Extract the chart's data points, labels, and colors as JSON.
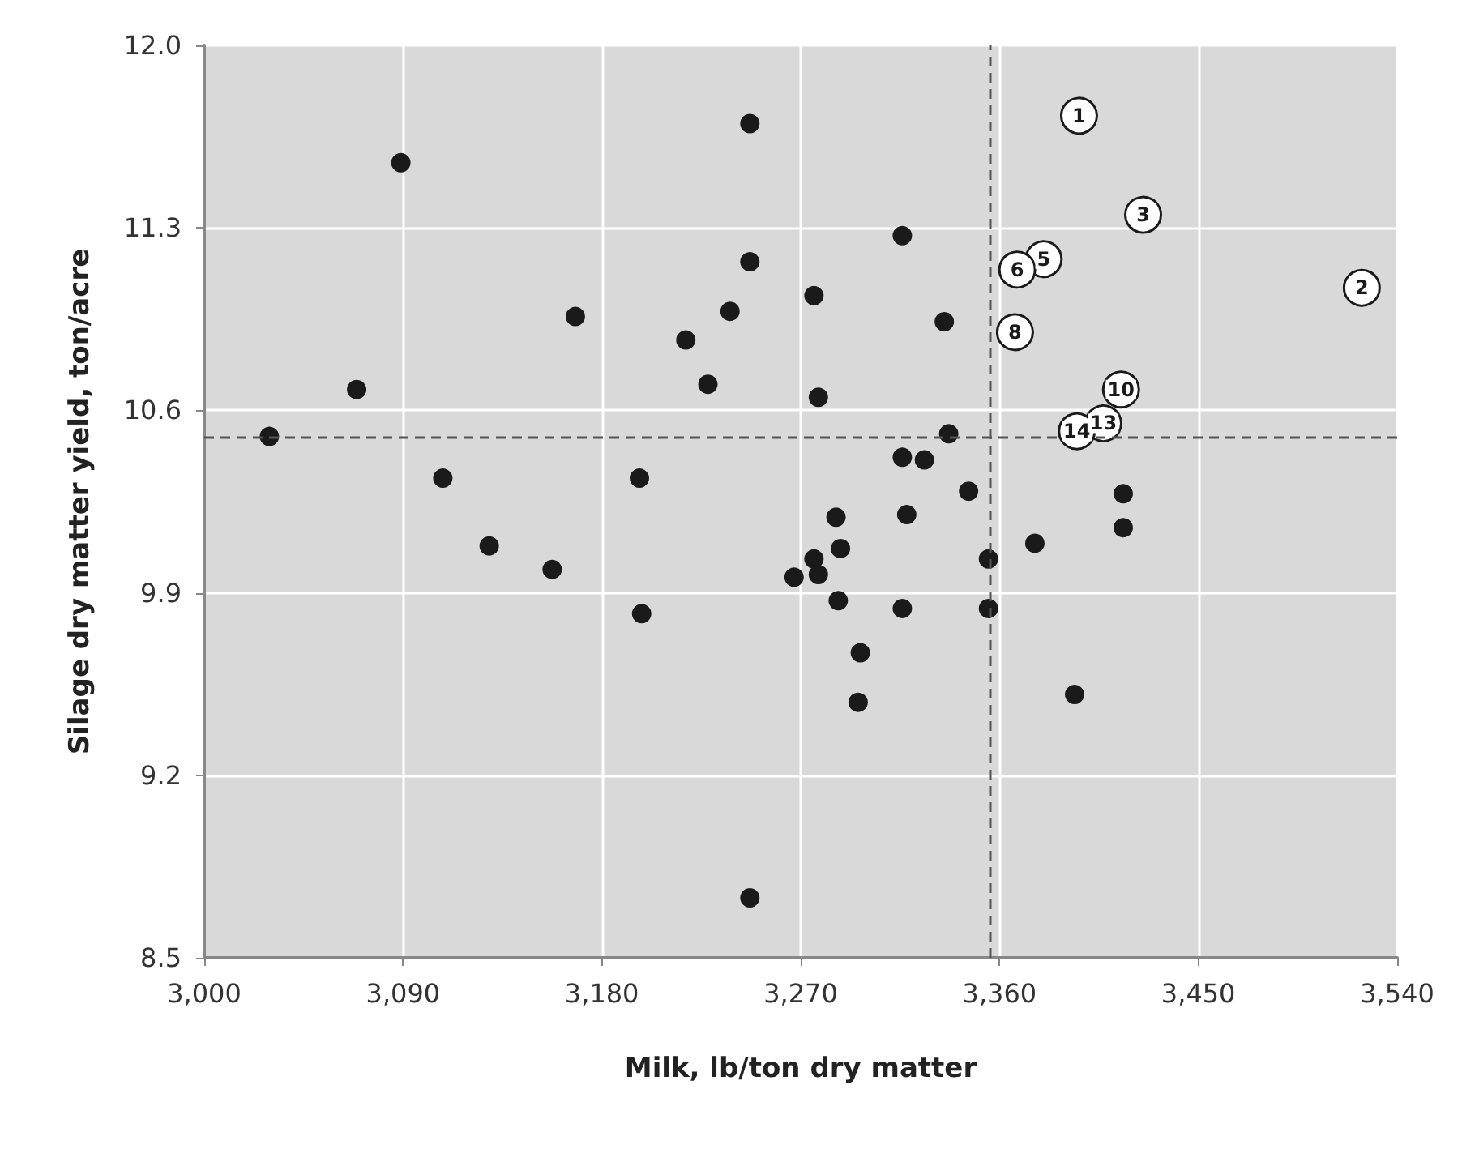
{
  "chart_data": {
    "type": "scatter",
    "xlabel": "Milk, lb/ton dry matter",
    "ylabel": "Silage dry matter yield, ton/acre",
    "xlim": [
      3000,
      3540
    ],
    "ylim": [
      8.5,
      12.0
    ],
    "xticks": [
      {
        "value": 3000,
        "label": "3,000"
      },
      {
        "value": 3090,
        "label": "3,090"
      },
      {
        "value": 3180,
        "label": "3,180"
      },
      {
        "value": 3270,
        "label": "3,270"
      },
      {
        "value": 3360,
        "label": "3,360"
      },
      {
        "value": 3450,
        "label": "3,450"
      },
      {
        "value": 3540,
        "label": "3,540"
      }
    ],
    "yticks": [
      {
        "value": 8.5,
        "label": "8.5"
      },
      {
        "value": 9.2,
        "label": "9.2"
      },
      {
        "value": 9.9,
        "label": "9.9"
      },
      {
        "value": 10.6,
        "label": "10.6"
      },
      {
        "value": 11.3,
        "label": "11.3"
      },
      {
        "value": 12.0,
        "label": "12.0"
      }
    ],
    "grid": true,
    "marker": "circle",
    "series": [
      {
        "color": "#1a1a1a",
        "x": [
          3029.5,
          3069,
          3089,
          3108,
          3129,
          3157.5,
          3168,
          3197,
          3198,
          3218,
          3228,
          3238,
          3247,
          3247,
          3276,
          3278,
          3267,
          3276,
          3278,
          3286,
          3288,
          3287,
          3297,
          3296,
          3316,
          3316,
          3318,
          3316,
          3326,
          3335,
          3337,
          3346,
          3355,
          3355,
          3376,
          3394,
          3416,
          3416,
          3247
        ],
        "values": [
          10.5,
          10.68,
          11.55,
          10.34,
          10.08,
          9.99,
          10.96,
          10.34,
          9.82,
          10.87,
          10.7,
          10.98,
          11.17,
          11.7,
          11.04,
          10.65,
          9.96,
          10.03,
          9.97,
          10.19,
          10.07,
          9.87,
          9.67,
          9.48,
          11.27,
          10.42,
          10.2,
          9.84,
          10.41,
          10.94,
          10.51,
          10.29,
          10.03,
          9.84,
          10.09,
          9.51,
          10.28,
          10.15,
          8.73
        ]
      },
      {
        "color": "#ffffff",
        "x": [
          3396,
          3524,
          3425,
          3380,
          3368,
          3367,
          3415,
          3407,
          3395
        ],
        "values": [
          11.73,
          11.07,
          11.35,
          11.18,
          11.14,
          10.9,
          10.68,
          10.55,
          10.52
        ]
      }
    ],
    "annotations": [
      {
        "text": "1",
        "x": 3396,
        "y": 11.73
      },
      {
        "text": "2",
        "x": 3524,
        "y": 11.07
      },
      {
        "text": "3",
        "x": 3425,
        "y": 11.35
      },
      {
        "text": "5",
        "x": 3380,
        "y": 11.18
      },
      {
        "text": "6",
        "x": 3368,
        "y": 11.14
      },
      {
        "text": "8",
        "x": 3367,
        "y": 10.9
      },
      {
        "text": "10",
        "x": 3415,
        "y": 10.68
      },
      {
        "text": "13",
        "x": 3407,
        "y": 10.55
      },
      {
        "text": "14",
        "x": 3395,
        "y": 10.52
      }
    ],
    "ref_lines": [
      {
        "axis": "x",
        "value": 3356,
        "line_style": "dashed",
        "color": "#555555"
      },
      {
        "axis": "y",
        "value": 10.5,
        "line_style": "dashed",
        "color": "#555555"
      }
    ]
  }
}
